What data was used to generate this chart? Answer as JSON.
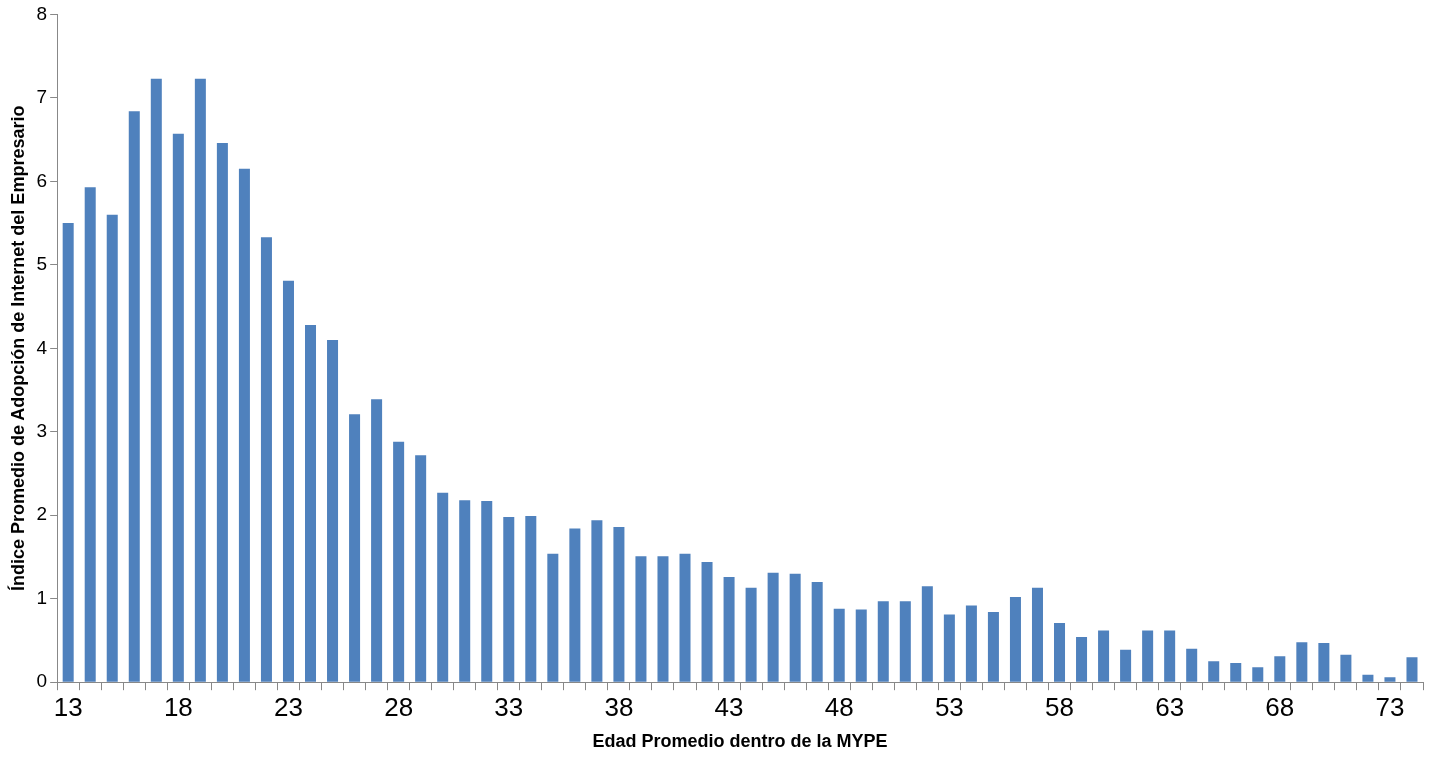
{
  "chart_data": {
    "type": "bar",
    "xlabel": "Edad Promedio dentro de la MYPE",
    "ylabel": "Índice Promedio de Adopción de Internet del Empresario",
    "categories": [
      "13",
      null,
      null,
      null,
      null,
      "18",
      null,
      null,
      null,
      null,
      "23",
      null,
      null,
      null,
      null,
      "28",
      null,
      null,
      null,
      null,
      "33",
      null,
      null,
      null,
      null,
      "38",
      null,
      null,
      null,
      null,
      "43",
      null,
      null,
      null,
      null,
      "48",
      null,
      null,
      null,
      null,
      "53",
      null,
      null,
      null,
      null,
      "58",
      null,
      null,
      null,
      null,
      "63",
      null,
      null,
      null,
      null,
      "68",
      null,
      null,
      null,
      null,
      "73",
      null
    ],
    "values": [
      5.5,
      5.93,
      5.6,
      6.84,
      7.23,
      6.57,
      7.23,
      6.46,
      6.15,
      5.33,
      4.81,
      4.28,
      4.1,
      3.21,
      3.39,
      2.88,
      2.72,
      2.27,
      2.18,
      2.17,
      1.98,
      1.99,
      1.54,
      1.84,
      1.94,
      1.86,
      1.51,
      1.51,
      1.54,
      1.44,
      1.26,
      1.13,
      1.31,
      1.3,
      1.2,
      0.88,
      0.87,
      0.97,
      0.97,
      1.15,
      0.81,
      0.92,
      0.84,
      1.02,
      1.13,
      0.71,
      0.54,
      0.62,
      0.39,
      0.62,
      0.62,
      0.4,
      0.25,
      0.23,
      0.18,
      0.31,
      0.48,
      0.47,
      0.33,
      0.09,
      0.06,
      0.3
    ],
    "color": "#4f81bd",
    "ylim": [
      0,
      8
    ],
    "yticks": [
      0,
      1,
      2,
      3,
      4,
      5,
      6,
      7,
      8
    ]
  }
}
